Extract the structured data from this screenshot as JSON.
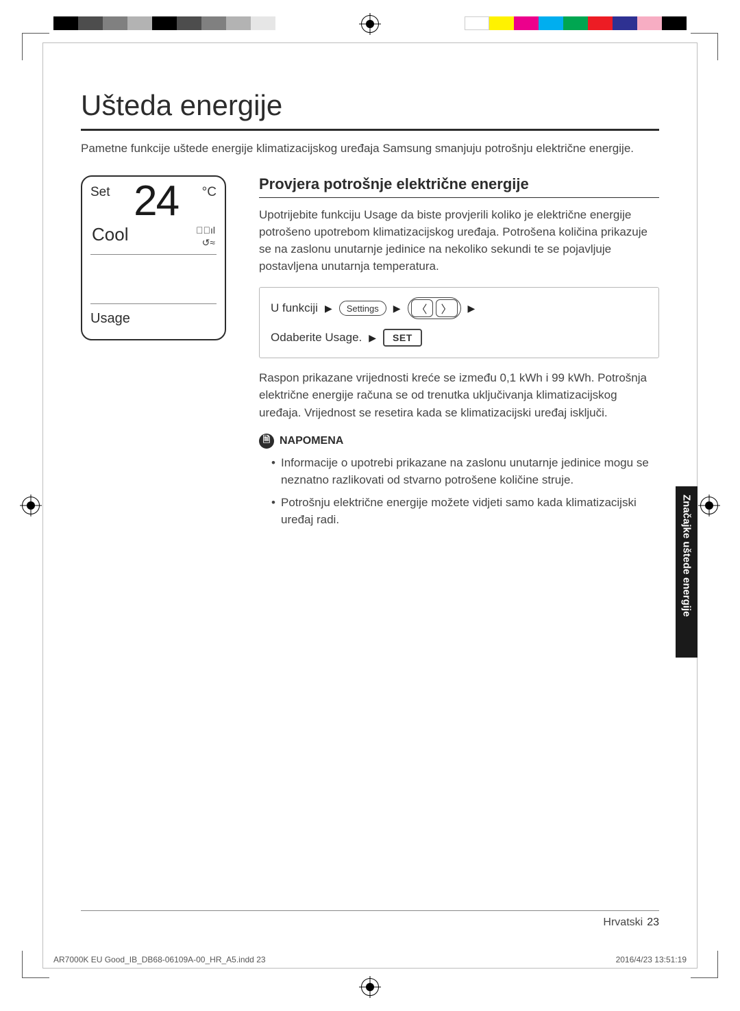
{
  "colors": {
    "text": "#3a3a3a",
    "heading": "#2c2c2c",
    "rule": "#2c2c2c",
    "light_rule": "#888888",
    "box_border": "#b8b8b8",
    "tab_bg": "#1a1a1a",
    "tab_text": "#ffffff"
  },
  "colorbar_left": [
    "#000000",
    "#4d4d4d",
    "#808080",
    "#b3b3b3",
    "#000000",
    "#4d4d4d",
    "#808080",
    "#b3b3b3",
    "#e6e6e6"
  ],
  "colorbar_right": [
    "#ffffff",
    "#fff200",
    "#ec008c",
    "#00aeef",
    "#00a651",
    "#ed1c24",
    "#2e3192",
    "#f7adc3",
    "#000000"
  ],
  "title": "Ušteda energije",
  "intro": "Pametne funkcije uštede energije klimatizacijskog uređaja Samsung smanjuju potrošnju električne energije.",
  "remote": {
    "set_label": "Set",
    "temp_value": "24",
    "unit": "°C",
    "mode": "Cool",
    "usage_label": "Usage"
  },
  "section_heading": "Provjera potrošnje električne energije",
  "section_body": "Upotrijebite funkciju Usage da biste provjerili koliko je električne energije potrošeno upotrebom klimatizacijskog uređaja. Potrošena količina prikazuje se na zaslonu unutarnje jedinice na nekoliko sekundi te se pojavljuje postavljena unutarnja temperatura.",
  "steps": {
    "line1_label": "U funkciji",
    "settings_btn": "Settings",
    "line2_label": "Odaberite Usage.",
    "set_btn": "SET"
  },
  "post_steps": "Raspon prikazane vrijednosti kreće se između 0,1 kWh i 99 kWh. Potrošnja električne energije računa se od trenutka uključivanja klimatizacijskog uređaja. Vrijednost se resetira kada se klimatizacijski uređaj isključi.",
  "note_label": "NAPOMENA",
  "notes": [
    "Informacije o upotrebi prikazane na zaslonu unutarnje jedinice mogu se neznatno razlikovati od stvarno potrošene količine struje.",
    "Potrošnju električne energije možete vidjeti samo kada klimatizacijski uređaj radi."
  ],
  "side_tab": "Značajke uštede energije",
  "footer_lang": "Hrvatski",
  "footer_page": "23",
  "prepress": {
    "file": "AR7000K EU Good_IB_DB68-06109A-00_HR_A5.indd   23",
    "timestamp": "2016/4/23   13:51:19"
  }
}
